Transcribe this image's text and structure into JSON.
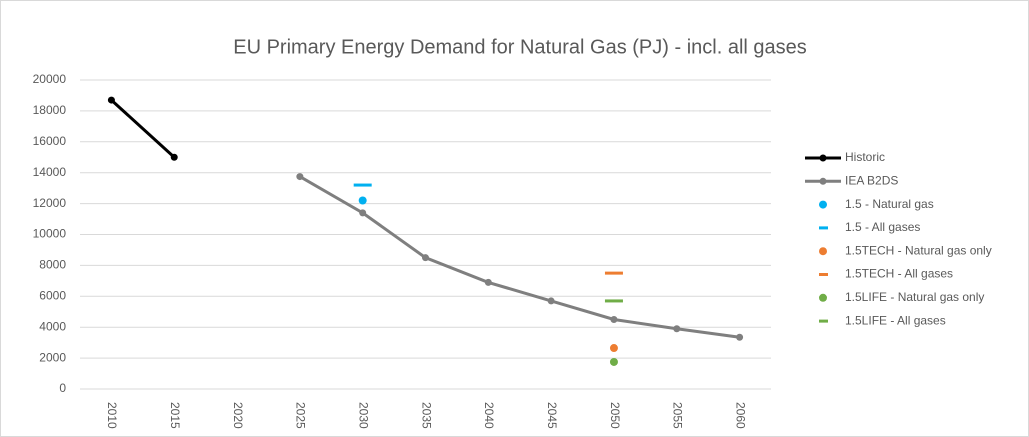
{
  "chart_data": {
    "type": "line",
    "title": "EU Primary Energy Demand for Natural Gas (PJ) - incl. all gases",
    "categories": [
      "2010",
      "2015",
      "2020",
      "2025",
      "2030",
      "2035",
      "2040",
      "2045",
      "2050",
      "2055",
      "2060"
    ],
    "ylim": [
      0,
      20000
    ],
    "yticks": [
      0,
      2000,
      4000,
      6000,
      8000,
      10000,
      12000,
      14000,
      16000,
      18000,
      20000
    ],
    "grid": true,
    "legend": "right",
    "series": [
      {
        "name": "Historic",
        "color": "#000000",
        "marker": "line",
        "values": [
          18700,
          15000,
          null,
          null,
          null,
          null,
          null,
          null,
          null,
          null,
          null
        ]
      },
      {
        "name": "IEA B2DS",
        "color": "#7f7f7f",
        "marker": "line",
        "values": [
          null,
          null,
          null,
          13750,
          11400,
          8500,
          6900,
          5700,
          4500,
          3900,
          3350
        ]
      },
      {
        "name": "1.5 - Natural gas",
        "color": "#00b0f0",
        "marker": "dot",
        "values": [
          null,
          null,
          null,
          null,
          12200,
          null,
          null,
          null,
          null,
          null,
          null
        ]
      },
      {
        "name": "1.5 - All gases",
        "color": "#00b0f0",
        "marker": "dash",
        "values": [
          null,
          null,
          null,
          null,
          13200,
          null,
          null,
          null,
          null,
          null,
          null
        ]
      },
      {
        "name": "1.5TECH - Natural gas only",
        "color": "#ed7d31",
        "marker": "dot",
        "values": [
          null,
          null,
          null,
          null,
          null,
          null,
          null,
          null,
          2650,
          null,
          null
        ]
      },
      {
        "name": "1.5TECH - All gases",
        "color": "#ed7d31",
        "marker": "dash",
        "values": [
          null,
          null,
          null,
          null,
          null,
          null,
          null,
          null,
          7500,
          null,
          null
        ]
      },
      {
        "name": "1.5LIFE - Natural gas only",
        "color": "#70ad47",
        "marker": "dot",
        "values": [
          null,
          null,
          null,
          null,
          null,
          null,
          null,
          null,
          1750,
          null,
          null
        ]
      },
      {
        "name": "1.5LIFE - All gases",
        "color": "#70ad47",
        "marker": "dash",
        "values": [
          null,
          null,
          null,
          null,
          null,
          null,
          null,
          null,
          5700,
          null,
          null
        ]
      }
    ]
  }
}
